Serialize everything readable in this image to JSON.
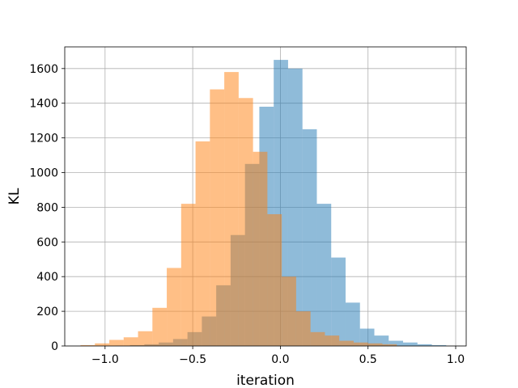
{
  "chart_data": {
    "type": "bar",
    "subtype": "overlaid-histogram",
    "title": "",
    "xlabel": "iteration",
    "ylabel": "KL",
    "xlim": [
      -1.23,
      1.06
    ],
    "ylim": [
      0,
      1725
    ],
    "grid": true,
    "x_ticks": [
      -1.0,
      -0.5,
      0.0,
      0.5,
      1.0
    ],
    "x_tick_labels": [
      "−1.0",
      "−0.5",
      "0.0",
      "0.5",
      "1.0"
    ],
    "y_ticks": [
      0,
      200,
      400,
      600,
      800,
      1000,
      1200,
      1400,
      1600
    ],
    "y_tick_labels": [
      "0",
      "200",
      "400",
      "600",
      "800",
      "1000",
      "1200",
      "1400",
      "1600"
    ],
    "series": [
      {
        "color": "#1f77b4",
        "opacity": 0.5,
        "bin_edges": [
          -0.94,
          -0.858,
          -0.776,
          -0.694,
          -0.612,
          -0.53,
          -0.448,
          -0.366,
          -0.284,
          -0.202,
          -0.12,
          -0.038,
          0.044,
          0.126,
          0.208,
          0.29,
          0.372,
          0.454,
          0.536,
          0.618,
          0.7,
          0.782,
          0.864,
          0.946
        ],
        "counts": [
          2,
          5,
          10,
          20,
          40,
          80,
          170,
          350,
          640,
          1050,
          1380,
          1650,
          1600,
          1250,
          820,
          510,
          250,
          100,
          60,
          30,
          20,
          10,
          5
        ]
      },
      {
        "color": "#ff7f0e",
        "opacity": 0.5,
        "bin_edges": [
          -1.14,
          -1.058,
          -0.976,
          -0.894,
          -0.812,
          -0.73,
          -0.648,
          -0.566,
          -0.484,
          -0.402,
          -0.32,
          -0.238,
          -0.156,
          -0.074,
          0.008,
          0.09,
          0.172,
          0.254,
          0.336,
          0.418,
          0.5,
          0.582,
          0.664
        ],
        "counts": [
          5,
          15,
          35,
          50,
          85,
          220,
          450,
          820,
          1180,
          1480,
          1580,
          1430,
          1120,
          760,
          400,
          200,
          80,
          60,
          30,
          20,
          15,
          10
        ]
      }
    ]
  }
}
